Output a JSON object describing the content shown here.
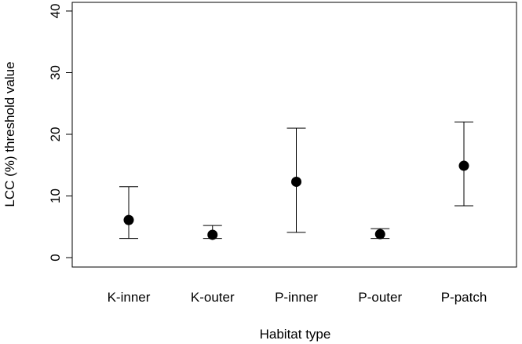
{
  "chart_data": {
    "type": "scatter",
    "title": "",
    "xlabel": "Habitat type",
    "ylabel": "LCC (%) threshold value",
    "ylim": [
      0,
      40
    ],
    "yticks": [
      0,
      10,
      20,
      30,
      40
    ],
    "categories": [
      "K-inner",
      "K-outer",
      "P-inner",
      "P-outer",
      "P-patch"
    ],
    "series": [
      {
        "values": [
          6.1,
          3.7,
          12.3,
          3.8,
          14.9
        ],
        "lower": [
          3.1,
          3.1,
          4.1,
          3.1,
          8.4
        ],
        "upper": [
          11.5,
          5.2,
          21.0,
          4.7,
          22.0
        ]
      }
    ],
    "grid": false,
    "point_color": "#000000"
  }
}
